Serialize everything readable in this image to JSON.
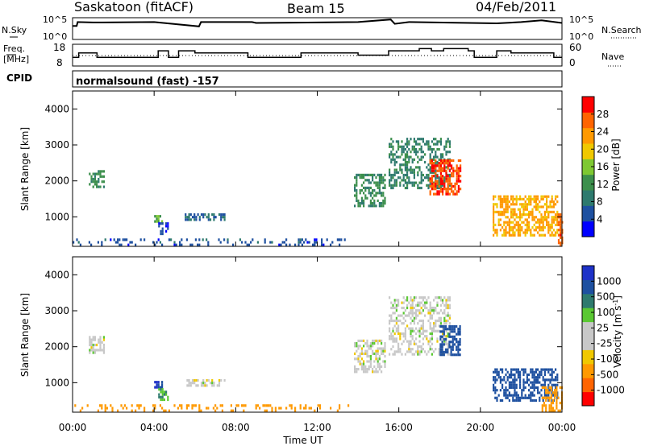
{
  "header": {
    "station": "Saskatoon (fitACF)",
    "beam": "Beam 15",
    "date": "04/Feb/2011"
  },
  "top_panel": {
    "left_label": "N.Sky",
    "left_ticks": [
      "10^5",
      "10^0"
    ],
    "right_ticks": [
      "10^5",
      "10^0"
    ],
    "right_label": "N.Search"
  },
  "freq_panel": {
    "left_label_1": "Freq.",
    "left_label_2": "[MHz]",
    "left_ticks": [
      "18",
      "8"
    ],
    "right_ticks": [
      "60",
      "0"
    ],
    "right_label": "Nave",
    "cpid_label": "CPID",
    "cpid_text": "normalsound (fast) -157"
  },
  "colors": {
    "power_scale": [
      "#0000ff",
      "#1e50a0",
      "#2e7a6e",
      "#3c8f4c",
      "#7ec832",
      "#f0c800",
      "#ff9900",
      "#ff6400",
      "#ff0000"
    ],
    "velocity_scale": [
      "#1e32c8",
      "#1e50a0",
      "#2e7a6e",
      "#5ac832",
      "#c8c8c8",
      "#c8c8c8",
      "#f0c800",
      "#ff9900",
      "#ff6400",
      "#ff0000"
    ]
  },
  "chart_data": [
    {
      "type": "line",
      "title": "",
      "series": [
        {
          "name": "N.Sky",
          "x": [
            0.0,
            0.2,
            0.25,
            1.0,
            4.0,
            6.2,
            6.3,
            8.8,
            9.0,
            14.0,
            15.6,
            15.8,
            16.5,
            20.8,
            22.0,
            23.0,
            24.0
          ],
          "y": [
            0.62,
            0.62,
            0.8,
            0.78,
            0.8,
            0.6,
            0.8,
            0.8,
            0.76,
            0.8,
            0.92,
            0.72,
            0.8,
            0.74,
            0.8,
            0.88,
            0.76
          ]
        }
      ],
      "xlim": [
        0,
        24
      ]
    },
    {
      "type": "line",
      "title": "",
      "series": [
        {
          "name": "Freq.",
          "x": [
            0.0,
            0.3,
            0.3,
            1.2,
            1.2,
            4.2,
            4.2,
            4.7,
            4.7,
            5.2,
            5.2,
            6.0,
            6.0,
            8.6,
            8.6,
            11.2,
            11.2,
            14.0,
            14.0,
            15.5,
            15.5,
            17.0,
            17.0,
            17.6,
            17.6,
            18.2,
            18.2,
            19.4,
            19.4,
            19.7,
            19.7,
            20.8,
            20.8,
            21.5,
            21.5,
            23.6,
            23.6,
            24.0
          ],
          "y": [
            12,
            12,
            14,
            14,
            12,
            12,
            15,
            15,
            12,
            12,
            15,
            15,
            14,
            14,
            12,
            12,
            14,
            14,
            13,
            13,
            15,
            15,
            16,
            16,
            15,
            15,
            16,
            16,
            15,
            15,
            12,
            12,
            15,
            15,
            14,
            14,
            12,
            12
          ]
        }
      ],
      "ylim": [
        8,
        18
      ],
      "xlim": [
        0,
        24
      ]
    },
    {
      "type": "heatmap",
      "title": "",
      "xlabel": "",
      "ylabel": "Slant Range [km]",
      "xlim": [
        0,
        24
      ],
      "ylim": [
        180,
        4500
      ],
      "x_ticks": [
        "00:00",
        "04:00",
        "08:00",
        "12:00",
        "16:00",
        "20:00",
        "00:00"
      ],
      "y_ticks": [
        1000,
        2000,
        3000,
        4000
      ],
      "colorbar": {
        "label": "Power [dB]",
        "ticks": [
          4,
          8,
          12,
          16,
          20,
          24,
          28
        ]
      },
      "patches": [
        {
          "t": [
            0.8,
            1.5
          ],
          "r": [
            1800,
            2300
          ],
          "v": 12,
          "density": 0.6
        },
        {
          "t": [
            4.0,
            4.4
          ],
          "r": [
            900,
            1050
          ],
          "v": 14,
          "density": 0.7
        },
        {
          "t": [
            4.2,
            4.7
          ],
          "r": [
            550,
            850
          ],
          "v": 6,
          "density": 0.5
        },
        {
          "t": [
            5.5,
            7.5
          ],
          "r": [
            950,
            1100
          ],
          "v": 8,
          "density": 0.6
        },
        {
          "t": [
            0.0,
            13.5
          ],
          "r": [
            200,
            400
          ],
          "v": 7,
          "density": 0.22
        },
        {
          "t": [
            13.8,
            15.3
          ],
          "r": [
            1300,
            2200
          ],
          "v": 12,
          "density": 0.55
        },
        {
          "t": [
            15.5,
            18.5
          ],
          "r": [
            1800,
            3200
          ],
          "v": 11,
          "density": 0.45
        },
        {
          "t": [
            17.5,
            19.0
          ],
          "r": [
            1600,
            2600
          ],
          "v": 27,
          "density": 0.7
        },
        {
          "t": [
            20.6,
            23.8
          ],
          "r": [
            500,
            1600
          ],
          "v": 22,
          "density": 0.6
        },
        {
          "t": [
            23.8,
            24.0
          ],
          "r": [
            200,
            1100
          ],
          "v": 26,
          "density": 0.7
        }
      ]
    },
    {
      "type": "heatmap",
      "title": "",
      "xlabel": "Time UT",
      "ylabel": "Slant Range [km]",
      "xlim": [
        0,
        24
      ],
      "ylim": [
        180,
        4500
      ],
      "x_ticks": [
        "00:00",
        "04:00",
        "08:00",
        "12:00",
        "16:00",
        "20:00",
        "00:00"
      ],
      "y_ticks": [
        1000,
        2000,
        3000,
        4000
      ],
      "colorbar": {
        "label": "Velocity [m s^-1]",
        "ticks": [
          1000,
          500,
          100,
          25,
          -25,
          -100,
          -500,
          -1000
        ]
      },
      "patches": [
        {
          "t": [
            0.8,
            1.5
          ],
          "r": [
            1800,
            2300
          ],
          "v": 0,
          "density": 0.6
        },
        {
          "t": [
            4.0,
            4.4
          ],
          "r": [
            900,
            1050
          ],
          "v": 1000,
          "density": 0.7
        },
        {
          "t": [
            4.2,
            4.7
          ],
          "r": [
            550,
            850
          ],
          "v": 100,
          "density": 0.5
        },
        {
          "t": [
            5.5,
            7.5
          ],
          "r": [
            950,
            1100
          ],
          "v": 0,
          "density": 0.6
        },
        {
          "t": [
            0.0,
            13.5
          ],
          "r": [
            200,
            400
          ],
          "v": -150,
          "density": 0.22
        },
        {
          "t": [
            13.8,
            15.3
          ],
          "r": [
            1300,
            2200
          ],
          "v": 0,
          "density": 0.55
        },
        {
          "t": [
            15.5,
            18.5
          ],
          "r": [
            1800,
            3400
          ],
          "v": 0,
          "density": 0.45
        },
        {
          "t": [
            18.0,
            19.0
          ],
          "r": [
            1800,
            2600
          ],
          "v": 800,
          "density": 0.6
        },
        {
          "t": [
            20.6,
            23.8
          ],
          "r": [
            500,
            1400
          ],
          "v": 600,
          "density": 0.55
        },
        {
          "t": [
            23.0,
            24.0
          ],
          "r": [
            200,
            900
          ],
          "v": -400,
          "density": 0.5
        }
      ]
    }
  ]
}
